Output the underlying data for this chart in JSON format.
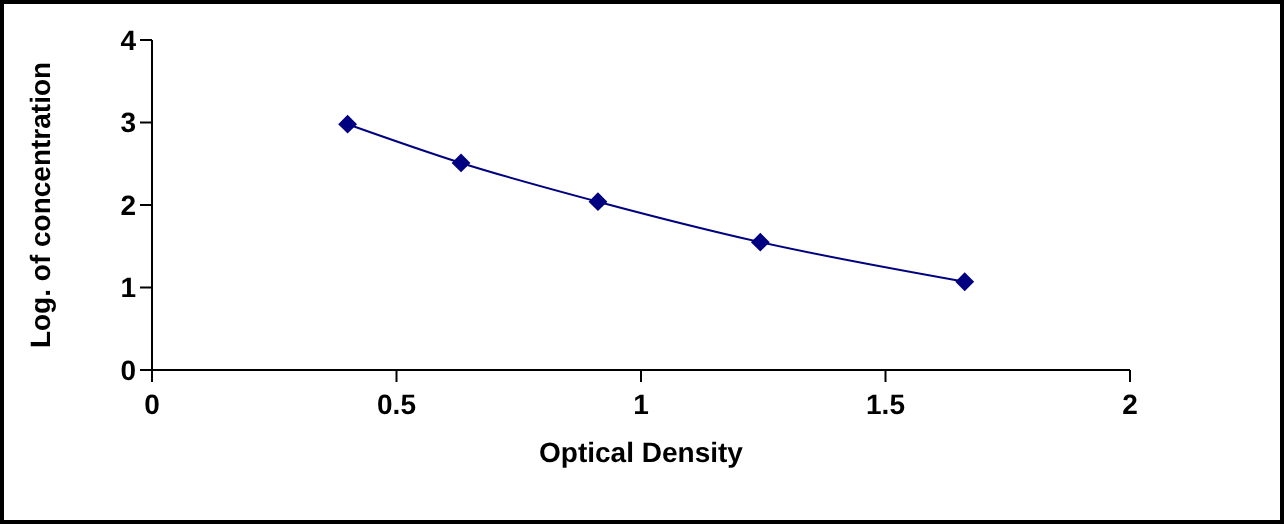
{
  "chart_data": {
    "type": "line",
    "xlabel": "Optical Density",
    "ylabel": "Log. of concentration",
    "x": [
      0.4,
      0.632,
      0.912,
      1.244,
      1.662
    ],
    "series": [
      {
        "color": "#000080",
        "values": [
          2.98,
          2.51,
          2.04,
          1.55,
          1.07
        ]
      }
    ],
    "xlim": [
      0,
      2
    ],
    "xticks": [
      0,
      0.5,
      1,
      1.5,
      2
    ],
    "ylim": [
      0,
      4
    ],
    "yticks": [
      0,
      1,
      2,
      3,
      4
    ],
    "grid": false,
    "legend": false,
    "marker": "diamond",
    "line_style": "solid"
  }
}
